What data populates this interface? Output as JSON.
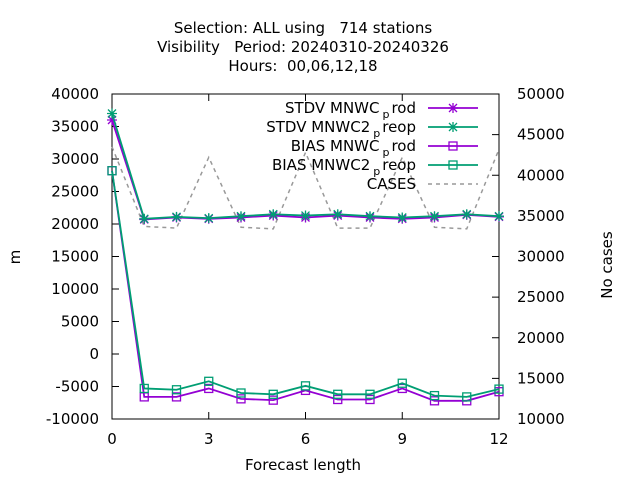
{
  "chart_data": {
    "type": "line",
    "title_lines": [
      "Selection: ALL using   714 stations",
      "Visibility   Period: 20240310-20240326",
      "Hours:  00,06,12,18"
    ],
    "xlabel": "Forecast length",
    "ylabel": "m",
    "y2label": "No cases",
    "xlim": [
      0,
      12
    ],
    "ylim": [
      -10000,
      40000
    ],
    "y2lim": [
      10000,
      50000
    ],
    "xticks": [
      0,
      3,
      6,
      9,
      12
    ],
    "yticks": [
      -10000,
      -5000,
      0,
      5000,
      10000,
      15000,
      20000,
      25000,
      30000,
      35000,
      40000
    ],
    "y2ticks": [
      10000,
      15000,
      20000,
      25000,
      30000,
      35000,
      40000,
      45000,
      50000
    ],
    "legend_position": "top-right",
    "x": [
      0,
      1,
      2,
      3,
      4,
      5,
      6,
      7,
      8,
      9,
      10,
      11,
      12
    ],
    "series": [
      {
        "name_main": "STDV MNWC",
        "name_sub": "p",
        "name_tail": "rod",
        "axis": "y",
        "color": "#9400d3",
        "marker": "x-star",
        "dash": "",
        "values": [
          36000,
          20700,
          21000,
          20800,
          21000,
          21300,
          21000,
          21300,
          21000,
          20800,
          21000,
          21400,
          21100
        ]
      },
      {
        "name_main": "STDV MNWC2",
        "name_sub": "p",
        "name_tail": "reop",
        "axis": "y",
        "color": "#009e73",
        "marker": "x-star",
        "dash": "",
        "values": [
          37000,
          20800,
          21100,
          20900,
          21200,
          21500,
          21300,
          21500,
          21200,
          21000,
          21200,
          21500,
          21200
        ]
      },
      {
        "name_main": "BIAS MNWC",
        "name_sub": "p",
        "name_tail": "rod",
        "axis": "y",
        "color": "#9400d3",
        "marker": "square",
        "dash": "",
        "values": [
          28200,
          -6600,
          -6600,
          -5300,
          -6900,
          -7100,
          -5600,
          -7000,
          -7000,
          -5300,
          -7200,
          -7200,
          -5800
        ]
      },
      {
        "name_main": "BIAS MNWC2",
        "name_sub": "p",
        "name_tail": "reop",
        "axis": "y",
        "color": "#009e73",
        "marker": "square",
        "dash": "",
        "values": [
          28200,
          -5300,
          -5500,
          -4200,
          -6000,
          -6200,
          -4900,
          -6200,
          -6200,
          -4500,
          -6400,
          -6600,
          -5400
        ]
      },
      {
        "name_main": "CASES",
        "name_sub": "",
        "name_tail": "",
        "axis": "y2",
        "color": "#999999",
        "marker": "none",
        "dash": "4,4",
        "values": [
          43500,
          33700,
          33500,
          42200,
          33600,
          33400,
          42800,
          33500,
          33500,
          42200,
          33600,
          33400,
          43200
        ]
      }
    ]
  }
}
